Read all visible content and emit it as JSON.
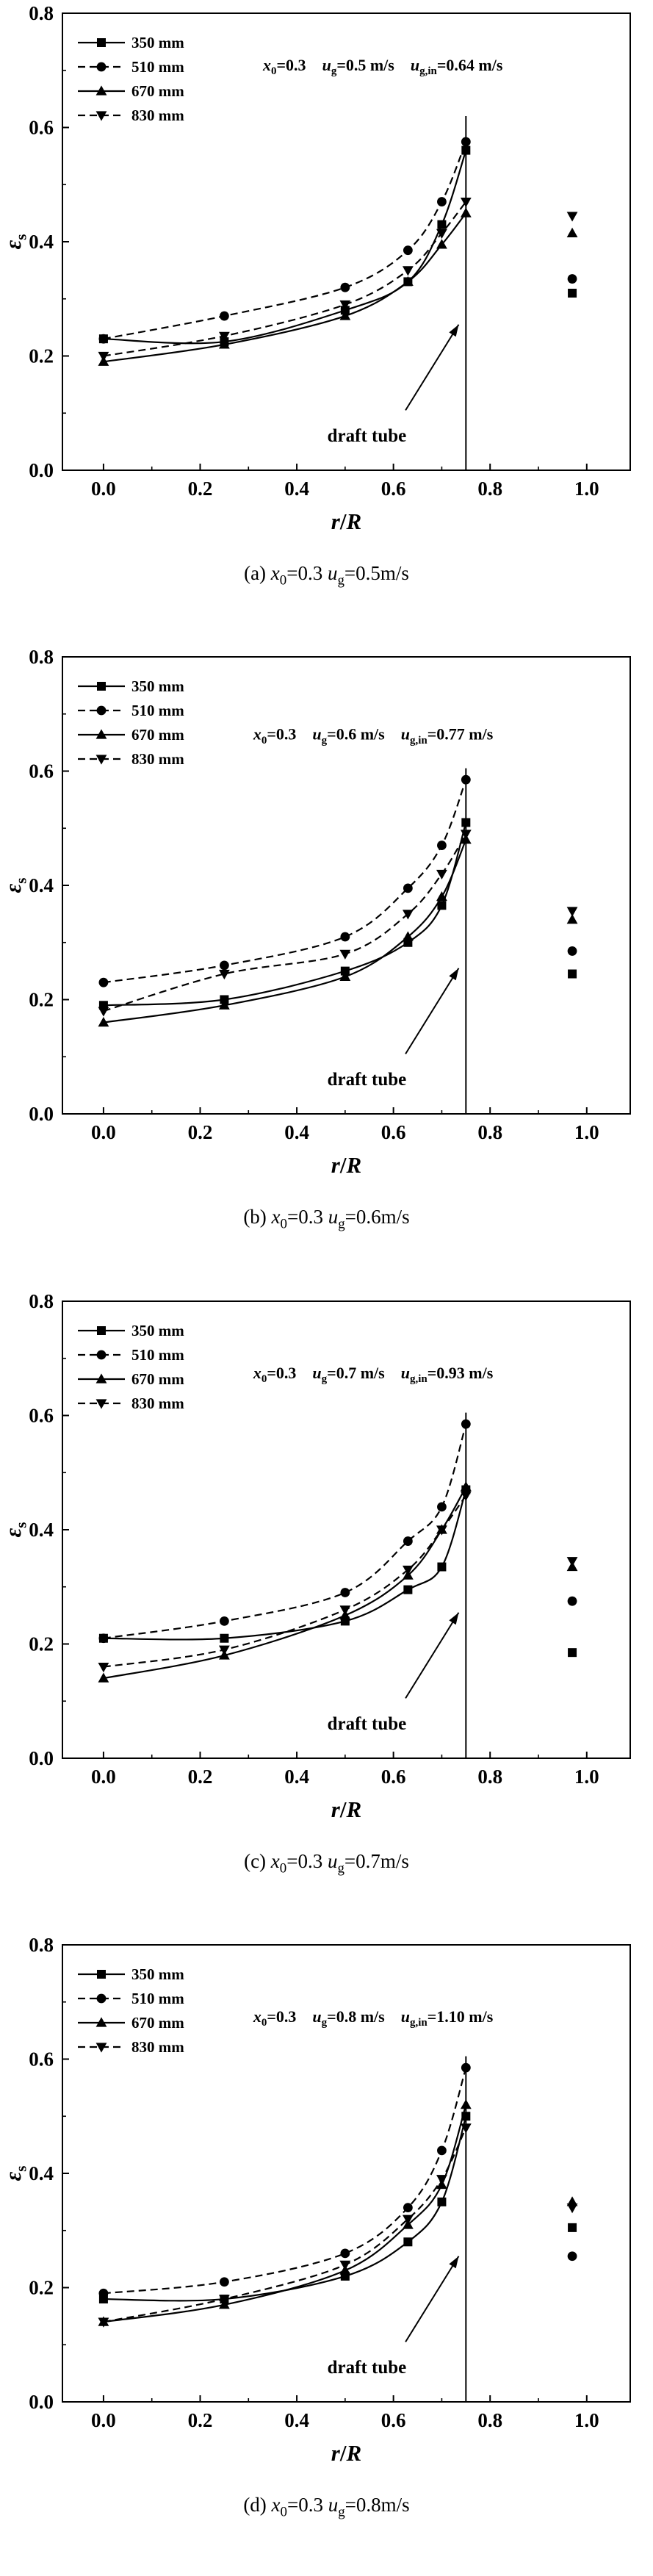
{
  "figure": {
    "background": "#ffffff",
    "foreground": "#000000",
    "axis": {
      "ylabel_parts": [
        {
          "t": "ε",
          "i": 1
        },
        {
          "t": "s",
          "s": 1
        }
      ],
      "xlabel_parts": [
        {
          "t": "r",
          "i": 1
        },
        {
          "t": "/"
        },
        {
          "t": "R",
          "i": 1
        }
      ],
      "y_tick_labels": [
        "0.0",
        "0.2",
        "0.4",
        "0.6",
        "0.8"
      ],
      "x_tick_labels": [
        "0.0",
        "0.2",
        "0.4",
        "0.6",
        "0.8",
        "1.0"
      ]
    },
    "legend_labels": [
      "350 mm",
      "510 mm",
      "670 mm",
      "830 mm"
    ]
  },
  "chart_data": [
    {
      "type": "line",
      "panel": "a",
      "xlabel": "r/R",
      "ylabel": "ε_s",
      "xlim": [
        -0.085,
        1.09
      ],
      "ylim": [
        0,
        0.8
      ],
      "x_ticks": [
        0,
        0.2,
        0.4,
        0.6,
        0.8,
        1.0
      ],
      "y_ticks": [
        0,
        0.2,
        0.4,
        0.6,
        0.8
      ],
      "x": [
        0,
        0.25,
        0.5,
        0.63,
        0.7,
        0.75
      ],
      "series": [
        {
          "name": "350 mm",
          "marker": "square",
          "line": "solid",
          "y": [
            0.23,
            0.225,
            0.28,
            0.33,
            0.43,
            0.56
          ],
          "outside_x": 0.97,
          "outside_y": 0.31
        },
        {
          "name": "510 mm",
          "marker": "circle",
          "line": "dashed",
          "y": [
            0.23,
            0.27,
            0.32,
            0.385,
            0.47,
            0.575
          ],
          "outside_x": 0.97,
          "outside_y": 0.335
        },
        {
          "name": "670 mm",
          "marker": "triangle-up",
          "line": "solid",
          "y": [
            0.19,
            0.22,
            0.27,
            0.33,
            0.395,
            0.45
          ],
          "outside_x": 0.97,
          "outside_y": 0.415
        },
        {
          "name": "830 mm",
          "marker": "triangle-down",
          "line": "dashed",
          "y": [
            0.2,
            0.235,
            0.29,
            0.35,
            0.415,
            0.47
          ],
          "outside_x": 0.97,
          "outside_y": 0.445
        }
      ],
      "annotation_pos": [
        0.33,
        0.7
      ],
      "annotation_parts": [
        {
          "t": "x",
          "i": 1
        },
        {
          "t": "0",
          "s": 1
        },
        {
          "t": "=0.3"
        },
        {
          "t": "    "
        },
        {
          "t": "u",
          "i": 1
        },
        {
          "t": "g",
          "s": 1
        },
        {
          "t": "=0.5 m/s"
        },
        {
          "t": "    "
        },
        {
          "t": "u",
          "i": 1
        },
        {
          "t": "g,in",
          "s": 1
        },
        {
          "t": "=0.64 m/s"
        }
      ],
      "draft_tube": {
        "x": 0.75,
        "top": 0.62,
        "label": "draft tube",
        "label_pos": [
          0.545,
          0.05
        ],
        "arrow_from": [
          0.625,
          0.105
        ],
        "arrow_to": [
          0.735,
          0.255
        ]
      },
      "caption_parts": [
        {
          "t": "(a) "
        },
        {
          "t": "x",
          "i": 1
        },
        {
          "t": "0",
          "s": 1
        },
        {
          "t": "=0.3 "
        },
        {
          "t": "u",
          "i": 1
        },
        {
          "t": "g",
          "s": 1
        },
        {
          "t": "=0.5m/s"
        }
      ]
    },
    {
      "type": "line",
      "panel": "b",
      "xlabel": "r/R",
      "ylabel": "ε_s",
      "xlim": [
        -0.085,
        1.09
      ],
      "ylim": [
        0,
        0.8
      ],
      "x_ticks": [
        0,
        0.2,
        0.4,
        0.6,
        0.8,
        1.0
      ],
      "y_ticks": [
        0,
        0.2,
        0.4,
        0.6,
        0.8
      ],
      "x": [
        0,
        0.25,
        0.5,
        0.63,
        0.7,
        0.75
      ],
      "series": [
        {
          "name": "350 mm",
          "marker": "square",
          "line": "solid",
          "y": [
            0.19,
            0.2,
            0.25,
            0.3,
            0.365,
            0.51
          ],
          "outside_x": 0.97,
          "outside_y": 0.245
        },
        {
          "name": "510 mm",
          "marker": "circle",
          "line": "dashed",
          "y": [
            0.23,
            0.26,
            0.31,
            0.395,
            0.47,
            0.585
          ],
          "outside_x": 0.97,
          "outside_y": 0.285
        },
        {
          "name": "670 mm",
          "marker": "triangle-up",
          "line": "solid",
          "y": [
            0.16,
            0.19,
            0.24,
            0.31,
            0.38,
            0.48
          ],
          "outside_x": 0.97,
          "outside_y": 0.34
        },
        {
          "name": "830 mm",
          "marker": "triangle-down",
          "line": "dashed",
          "y": [
            0.18,
            0.245,
            0.28,
            0.35,
            0.42,
            0.49
          ],
          "outside_x": 0.97,
          "outside_y": 0.355
        }
      ],
      "annotation_pos": [
        0.31,
        0.655
      ],
      "annotation_parts": [
        {
          "t": "x",
          "i": 1
        },
        {
          "t": "0",
          "s": 1
        },
        {
          "t": "=0.3"
        },
        {
          "t": "    "
        },
        {
          "t": "u",
          "i": 1
        },
        {
          "t": "g",
          "s": 1
        },
        {
          "t": "=0.6 m/s"
        },
        {
          "t": "    "
        },
        {
          "t": "u",
          "i": 1
        },
        {
          "t": "g,in",
          "s": 1
        },
        {
          "t": "=0.77 m/s"
        }
      ],
      "draft_tube": {
        "x": 0.75,
        "top": 0.605,
        "label": "draft tube",
        "label_pos": [
          0.545,
          0.05
        ],
        "arrow_from": [
          0.625,
          0.105
        ],
        "arrow_to": [
          0.735,
          0.255
        ]
      },
      "caption_parts": [
        {
          "t": "(b) "
        },
        {
          "t": "x",
          "i": 1
        },
        {
          "t": "0",
          "s": 1
        },
        {
          "t": "=0.3 "
        },
        {
          "t": "u",
          "i": 1
        },
        {
          "t": "g",
          "s": 1
        },
        {
          "t": "=0.6m/s"
        }
      ]
    },
    {
      "type": "line",
      "panel": "c",
      "xlabel": "r/R",
      "ylabel": "ε_s",
      "xlim": [
        -0.085,
        1.09
      ],
      "ylim": [
        0,
        0.8
      ],
      "x_ticks": [
        0,
        0.2,
        0.4,
        0.6,
        0.8,
        1.0
      ],
      "y_ticks": [
        0,
        0.2,
        0.4,
        0.6,
        0.8
      ],
      "x": [
        0,
        0.25,
        0.5,
        0.63,
        0.7,
        0.75
      ],
      "series": [
        {
          "name": "350 mm",
          "marker": "square",
          "line": "solid",
          "y": [
            0.21,
            0.21,
            0.24,
            0.295,
            0.335,
            0.47
          ],
          "outside_x": 0.97,
          "outside_y": 0.185
        },
        {
          "name": "510 mm",
          "marker": "circle",
          "line": "dashed",
          "y": [
            0.21,
            0.24,
            0.29,
            0.38,
            0.44,
            0.585
          ],
          "outside_x": 0.97,
          "outside_y": 0.275
        },
        {
          "name": "670 mm",
          "marker": "triangle-up",
          "line": "solid",
          "y": [
            0.14,
            0.18,
            0.25,
            0.32,
            0.4,
            0.475
          ],
          "outside_x": 0.97,
          "outside_y": 0.335
        },
        {
          "name": "830 mm",
          "marker": "triangle-down",
          "line": "dashed",
          "y": [
            0.16,
            0.19,
            0.26,
            0.33,
            0.4,
            0.46
          ],
          "outside_x": 0.97,
          "outside_y": 0.345
        }
      ],
      "annotation_pos": [
        0.31,
        0.665
      ],
      "annotation_parts": [
        {
          "t": "x",
          "i": 1
        },
        {
          "t": "0",
          "s": 1
        },
        {
          "t": "=0.3"
        },
        {
          "t": "    "
        },
        {
          "t": "u",
          "i": 1
        },
        {
          "t": "g",
          "s": 1
        },
        {
          "t": "=0.7 m/s"
        },
        {
          "t": "    "
        },
        {
          "t": "u",
          "i": 1
        },
        {
          "t": "g,in",
          "s": 1
        },
        {
          "t": "=0.93 m/s"
        }
      ],
      "draft_tube": {
        "x": 0.75,
        "top": 0.605,
        "label": "draft tube",
        "label_pos": [
          0.545,
          0.05
        ],
        "arrow_from": [
          0.625,
          0.105
        ],
        "arrow_to": [
          0.735,
          0.255
        ]
      },
      "caption_parts": [
        {
          "t": "(c) "
        },
        {
          "t": "x",
          "i": 1
        },
        {
          "t": "0",
          "s": 1
        },
        {
          "t": "=0.3 "
        },
        {
          "t": "u",
          "i": 1
        },
        {
          "t": "g",
          "s": 1
        },
        {
          "t": "=0.7m/s"
        }
      ]
    },
    {
      "type": "line",
      "panel": "d",
      "xlabel": "r/R",
      "ylabel": "ε_s",
      "xlim": [
        -0.085,
        1.09
      ],
      "ylim": [
        0,
        0.8
      ],
      "x_ticks": [
        0,
        0.2,
        0.4,
        0.6,
        0.8,
        1.0
      ],
      "y_ticks": [
        0,
        0.2,
        0.4,
        0.6,
        0.8
      ],
      "x": [
        0,
        0.25,
        0.5,
        0.63,
        0.7,
        0.75
      ],
      "series": [
        {
          "name": "350 mm",
          "marker": "square",
          "line": "solid",
          "y": [
            0.18,
            0.18,
            0.22,
            0.28,
            0.35,
            0.5
          ],
          "outside_x": 0.97,
          "outside_y": 0.305
        },
        {
          "name": "510 mm",
          "marker": "circle",
          "line": "dashed",
          "y": [
            0.19,
            0.21,
            0.26,
            0.34,
            0.44,
            0.585
          ],
          "outside_x": 0.97,
          "outside_y": 0.255
        },
        {
          "name": "670 mm",
          "marker": "triangle-up",
          "line": "solid",
          "y": [
            0.14,
            0.17,
            0.23,
            0.31,
            0.38,
            0.52
          ],
          "outside_x": 0.97,
          "outside_y": 0.35
        },
        {
          "name": "830 mm",
          "marker": "triangle-down",
          "line": "dashed",
          "y": [
            0.14,
            0.18,
            0.24,
            0.32,
            0.39,
            0.48
          ],
          "outside_x": 0.97,
          "outside_y": 0.34
        }
      ],
      "annotation_pos": [
        0.31,
        0.665
      ],
      "annotation_parts": [
        {
          "t": "x",
          "i": 1
        },
        {
          "t": "0",
          "s": 1
        },
        {
          "t": "=0.3"
        },
        {
          "t": "    "
        },
        {
          "t": "u",
          "i": 1
        },
        {
          "t": "g",
          "s": 1
        },
        {
          "t": "=0.8 m/s"
        },
        {
          "t": "    "
        },
        {
          "t": "u",
          "i": 1
        },
        {
          "t": "g,in",
          "s": 1
        },
        {
          "t": "=1.10 m/s"
        }
      ],
      "draft_tube": {
        "x": 0.75,
        "top": 0.605,
        "label": "draft tube",
        "label_pos": [
          0.545,
          0.05
        ],
        "arrow_from": [
          0.625,
          0.105
        ],
        "arrow_to": [
          0.735,
          0.255
        ]
      },
      "caption_parts": [
        {
          "t": "(d) "
        },
        {
          "t": "x",
          "i": 1
        },
        {
          "t": "0",
          "s": 1
        },
        {
          "t": "=0.3 "
        },
        {
          "t": "u",
          "i": 1
        },
        {
          "t": "g",
          "s": 1
        },
        {
          "t": "=0.8m/s"
        }
      ]
    }
  ]
}
